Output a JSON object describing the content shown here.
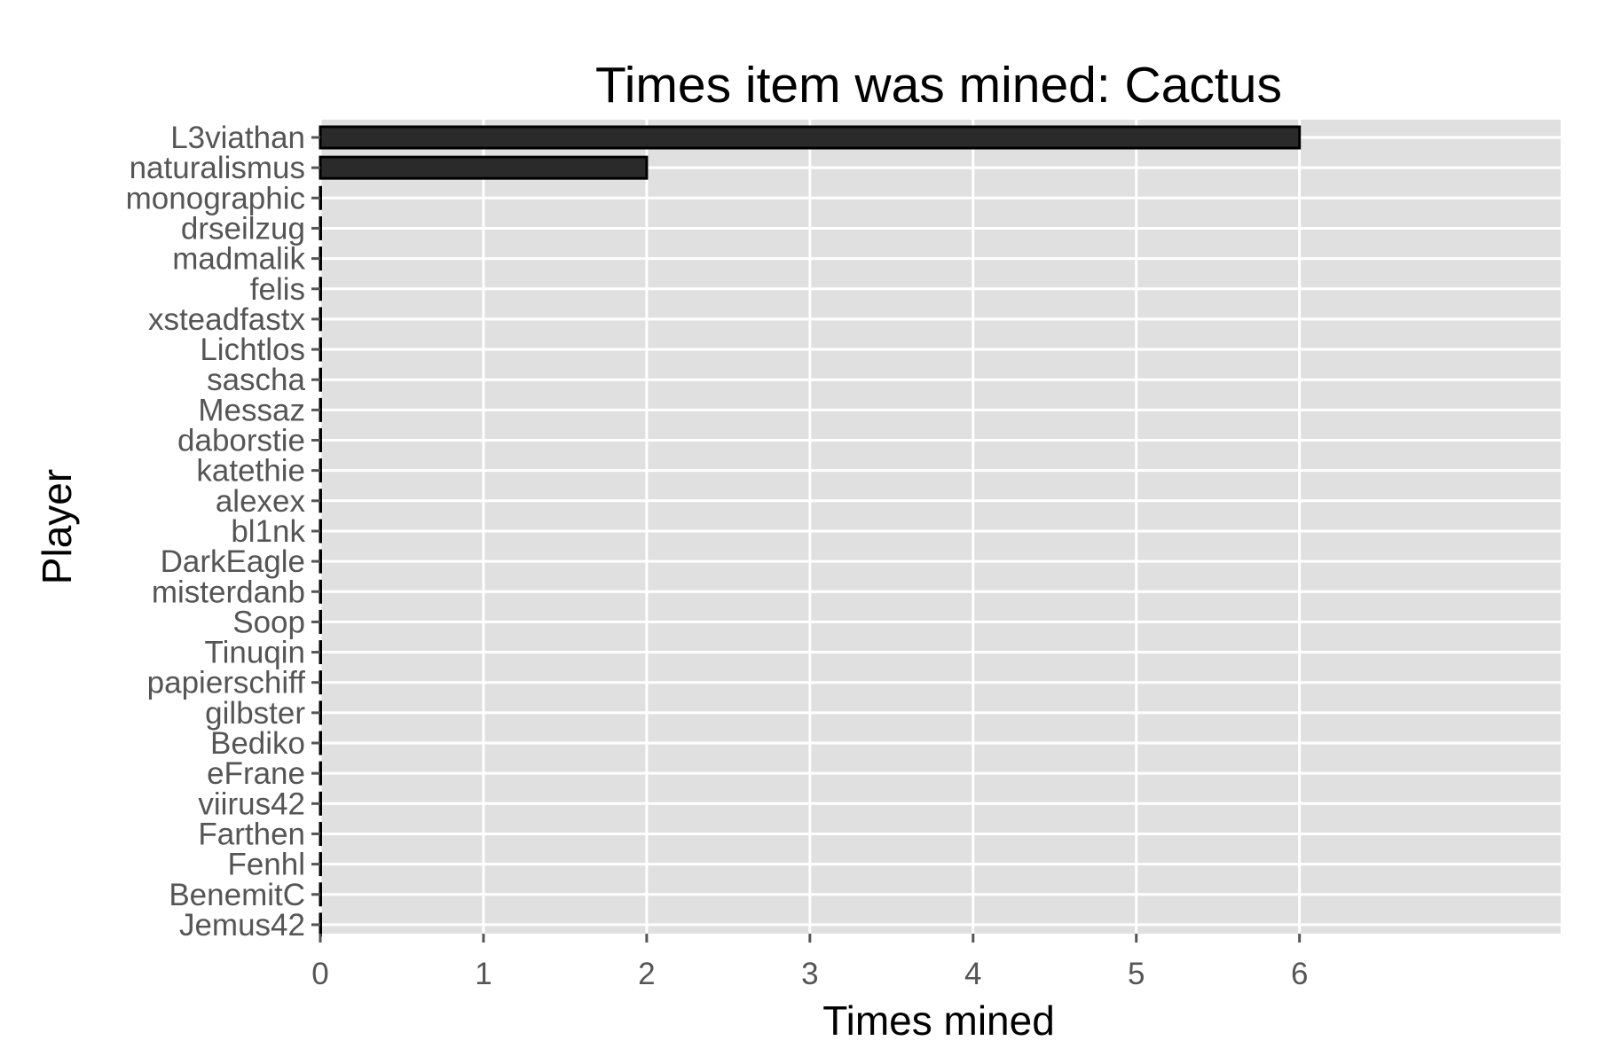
{
  "chart_data": {
    "type": "bar",
    "orientation": "horizontal",
    "title": "Times item was mined: Cactus",
    "xlabel": "Times mined",
    "ylabel": "Player",
    "xlim": [
      0,
      7.6
    ],
    "x_ticks": [
      0,
      1,
      2,
      3,
      4,
      5,
      6
    ],
    "grid": true,
    "legend": "none",
    "categories": [
      "L3viathan",
      "naturalismus",
      "monographic",
      "drseilzug",
      "madmalik",
      "felis",
      "xsteadfastx",
      "Lichtlos",
      "sascha",
      "Messaz",
      "daborstie",
      "katethie",
      "alexex",
      "bl1nk",
      "DarkEagle",
      "misterdanb",
      "Soop",
      "Tinuqin",
      "papierschiff",
      "gilbster",
      "Bediko",
      "eFrane",
      "viirus42",
      "Farthen",
      "Fenhl",
      "BenemitC",
      "Jemus42"
    ],
    "values": [
      6,
      2,
      0,
      0,
      0,
      0,
      0,
      0,
      0,
      0,
      0,
      0,
      0,
      0,
      0,
      0,
      0,
      0,
      0,
      0,
      0,
      0,
      0,
      0,
      0,
      0,
      0
    ],
    "colors": {
      "panel": "#e0e0e0",
      "grid": "#ffffff",
      "bar_fill": "#2a2a2a",
      "bar_stroke": "#000000",
      "tick_text": "#555555"
    }
  }
}
